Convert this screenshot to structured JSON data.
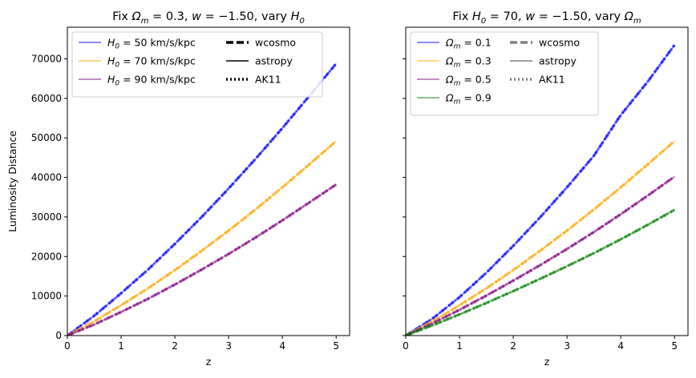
{
  "figure": {
    "shared_ylabel": "Luminosity Distance"
  },
  "chart_data": [
    {
      "type": "line",
      "title": "Fix Ωm = 0.3, w = −1.50, vary H0",
      "title_parts": {
        "prefix": "Fix ",
        "sym": "Ω",
        "sub": "m",
        "mid": " = 0.3, ",
        "wsym": "w",
        "wval": " = −1.50, vary ",
        "var": "H",
        "var_sub": "0"
      },
      "xlabel": "z",
      "ylabel": "Luminosity Distance",
      "xlim": [
        0,
        5.25
      ],
      "ylim": [
        0,
        78000
      ],
      "xticks": [
        "0",
        "1",
        "2",
        "3",
        "4",
        "5"
      ],
      "yticks": [
        "0",
        "10000",
        "20000",
        "30000",
        "40000",
        "50000",
        "60000",
        "70000"
      ],
      "legend_position": "top-left",
      "style_legend": [
        "wcosmo",
        "astropy",
        "AK11"
      ],
      "x": [
        0,
        0.5,
        1,
        1.5,
        2,
        2.5,
        3,
        3.5,
        4,
        4.5,
        5
      ],
      "series": [
        {
          "name": "H0 = 50 km/s/kpc",
          "label_sym": "H",
          "label_sub": "0",
          "label_rest": " = 50 km/s/kpc",
          "color": "#0000ff",
          "values": [
            0,
            5000,
            10700,
            16700,
            23200,
            30000,
            37200,
            44700,
            52500,
            60600,
            68800
          ]
        },
        {
          "name": "H0 = 70 km/s/kpc",
          "label_sym": "H",
          "label_sub": "0",
          "label_rest": " = 70 km/s/kpc",
          "color": "#ffa500",
          "values": [
            0,
            3600,
            7650,
            11950,
            16550,
            21450,
            26550,
            31900,
            37500,
            43300,
            49200
          ]
        },
        {
          "name": "H0 = 90 km/s/kpc",
          "label_sym": "H",
          "label_sub": "0",
          "label_rest": " = 90 km/s/kpc",
          "color": "#800080",
          "values": [
            0,
            2800,
            5950,
            9300,
            12900,
            16700,
            20650,
            24800,
            29150,
            33650,
            38200
          ]
        }
      ]
    },
    {
      "type": "line",
      "title": "Fix H0 = 70, w = −1.50, vary Ωm",
      "title_parts": {
        "prefix": "Fix ",
        "sym": "H",
        "sub": "0",
        "mid": " = 70, ",
        "wsym": "w",
        "wval": " = −1.50, vary ",
        "var": "Ω",
        "var_sub": "m"
      },
      "xlabel": "z",
      "ylabel": "",
      "xlim": [
        0,
        5.25
      ],
      "ylim": [
        0,
        78000
      ],
      "xticks": [
        "0",
        "1",
        "2",
        "3",
        "4",
        "5"
      ],
      "yticks": [],
      "legend_position": "top-left",
      "style_legend": [
        "wcosmo",
        "astropy",
        "AK11"
      ],
      "x": [
        0,
        0.5,
        1,
        1.5,
        2,
        2.5,
        3,
        3.5,
        4,
        4.5,
        5
      ],
      "series": [
        {
          "name": "Ωm = 0.1",
          "label_sym": "Ω",
          "label_sub": "m",
          "label_rest": " = 0.1",
          "color": "#0000ff",
          "values": [
            0,
            4300,
            9700,
            15900,
            22700,
            29900,
            37500,
            45500,
            55800,
            64200,
            73500
          ]
        },
        {
          "name": "Ωm = 0.3",
          "label_sym": "Ω",
          "label_sub": "m",
          "label_rest": " = 0.3",
          "color": "#ffa500",
          "values": [
            0,
            3600,
            7650,
            11950,
            16550,
            21450,
            26550,
            31900,
            37500,
            43300,
            49200
          ]
        },
        {
          "name": "Ωm = 0.5",
          "label_sym": "Ω",
          "label_sub": "m",
          "label_rest": " = 0.5",
          "color": "#800080",
          "values": [
            0,
            3100,
            6500,
            10100,
            13900,
            17800,
            21900,
            26200,
            30700,
            35400,
            40200
          ]
        },
        {
          "name": "Ωm = 0.9",
          "label_sym": "Ω",
          "label_sub": "m",
          "label_rest": " = 0.9",
          "color": "#008000",
          "values": [
            0,
            2600,
            5350,
            8250,
            11250,
            14350,
            17550,
            20850,
            24350,
            28000,
            31800
          ]
        }
      ]
    }
  ]
}
